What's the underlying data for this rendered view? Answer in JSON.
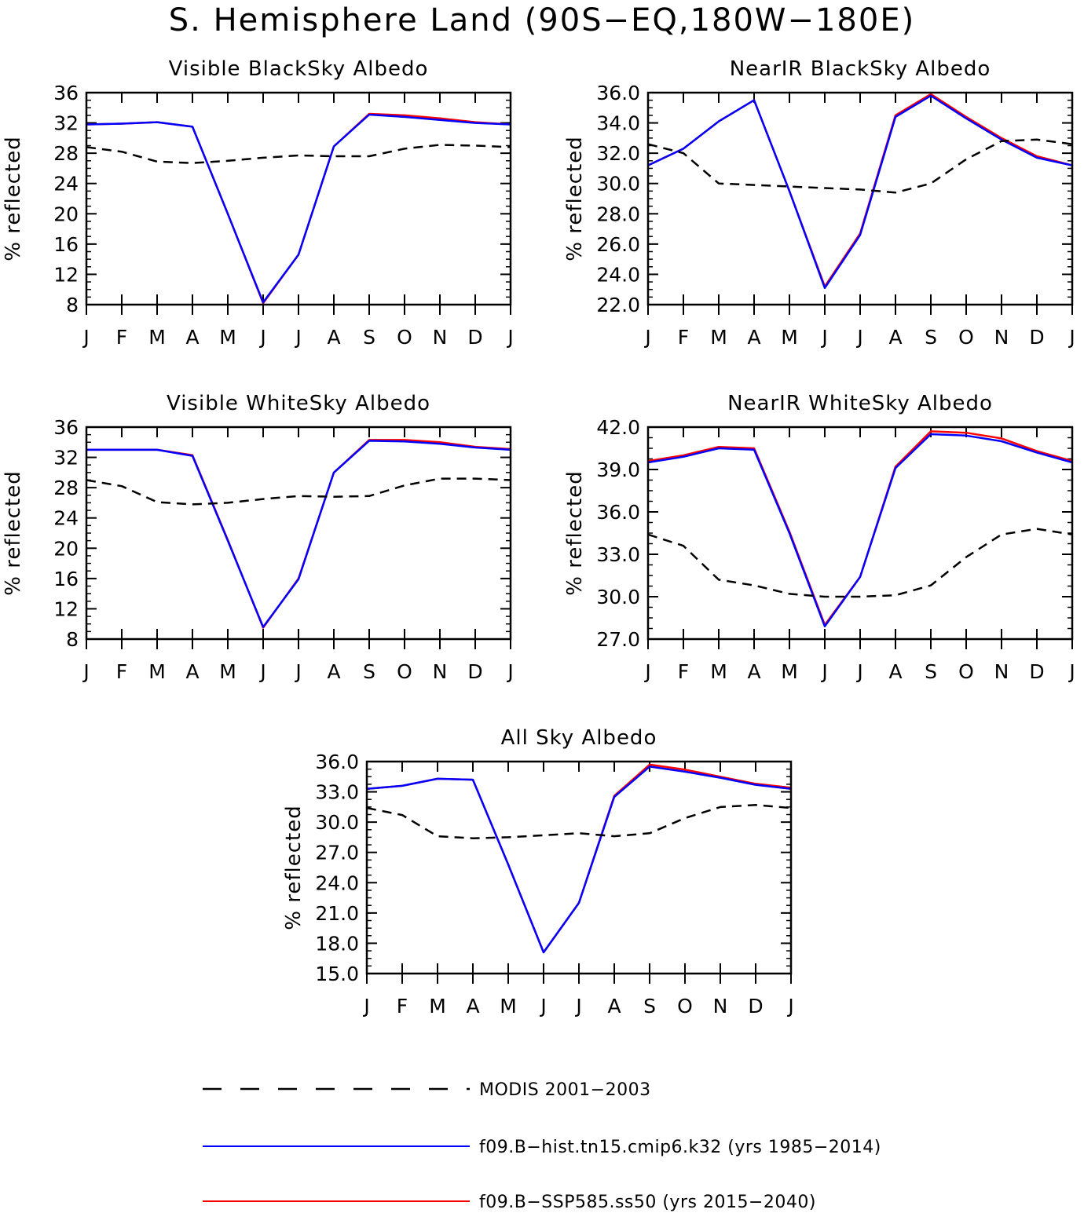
{
  "title": "S. Hemisphere Land (90S−EQ,180W−180E)",
  "colors": {
    "modis": "#000000",
    "hist": "#0000ff",
    "ssp": "#ff0000"
  },
  "legend": [
    {
      "key": "modis",
      "label": "MODIS 2001−2003",
      "style": "dashed"
    },
    {
      "key": "hist",
      "label": "f09.B−hist.tn15.cmip6.k32 (yrs 1985−2014)",
      "style": "solid"
    },
    {
      "key": "ssp",
      "label": "f09.B−SSP585.ss50 (yrs 2015−2040)",
      "style": "solid"
    }
  ],
  "chart_data": [
    {
      "type": "line",
      "title": "Visible BlackSky Albedo",
      "ylabel": "% reflected",
      "categories": [
        "J",
        "F",
        "M",
        "A",
        "M",
        "J",
        "J",
        "A",
        "S",
        "O",
        "N",
        "D",
        "J"
      ],
      "ylim": [
        8,
        36
      ],
      "yticks": [
        "8",
        "12",
        "16",
        "20",
        "24",
        "28",
        "32",
        "36"
      ],
      "series": [
        {
          "name": "MODIS 2001−2003",
          "key": "modis",
          "values": [
            28.8,
            28.2,
            26.9,
            26.7,
            27.0,
            27.4,
            27.7,
            27.6,
            27.6,
            28.6,
            29.1,
            29.0,
            28.8
          ]
        },
        {
          "name": "f09.B−hist.tn15.cmip6.k32 (yrs 1985−2014)",
          "key": "hist",
          "values": [
            31.8,
            31.9,
            32.1,
            31.5,
            20.0,
            8.3,
            14.6,
            28.9,
            33.1,
            32.8,
            32.4,
            32.0,
            31.8
          ]
        },
        {
          "name": "f09.B−SSP585.ss50 (yrs 2015−2040)",
          "key": "ssp",
          "values": [
            31.8,
            31.9,
            32.1,
            31.5,
            20.0,
            8.2,
            14.6,
            28.9,
            33.2,
            33.0,
            32.6,
            32.1,
            31.8
          ]
        }
      ]
    },
    {
      "type": "line",
      "title": "NearIR BlackSky Albedo",
      "ylabel": "% reflected",
      "categories": [
        "J",
        "F",
        "M",
        "A",
        "M",
        "J",
        "J",
        "A",
        "S",
        "O",
        "N",
        "D",
        "J"
      ],
      "ylim": [
        22,
        36
      ],
      "yticks": [
        "22.0",
        "24.0",
        "26.0",
        "28.0",
        "30.0",
        "32.0",
        "34.0",
        "36.0"
      ],
      "series": [
        {
          "name": "MODIS 2001−2003",
          "key": "modis",
          "values": [
            32.6,
            32.0,
            30.0,
            29.9,
            29.8,
            29.7,
            29.6,
            29.4,
            30.0,
            31.6,
            32.8,
            32.9,
            32.6
          ]
        },
        {
          "name": "f09.B−hist.tn15.cmip6.k32 (yrs 1985−2014)",
          "key": "hist",
          "values": [
            31.2,
            32.3,
            34.1,
            35.5,
            29.5,
            23.1,
            26.6,
            34.4,
            35.8,
            34.3,
            32.9,
            31.7,
            31.2
          ]
        },
        {
          "name": "f09.B−SSP585.ss50 (yrs 2015−2040)",
          "key": "ssp",
          "values": [
            31.2,
            32.3,
            34.1,
            35.5,
            29.5,
            23.2,
            26.7,
            34.5,
            35.9,
            34.4,
            33.0,
            31.8,
            31.2
          ]
        }
      ]
    },
    {
      "type": "line",
      "title": "Visible WhiteSky Albedo",
      "ylabel": "% reflected",
      "categories": [
        "J",
        "F",
        "M",
        "A",
        "M",
        "J",
        "J",
        "A",
        "S",
        "O",
        "N",
        "D",
        "J"
      ],
      "ylim": [
        8,
        36
      ],
      "yticks": [
        "8",
        "12",
        "16",
        "20",
        "24",
        "28",
        "32",
        "36"
      ],
      "series": [
        {
          "name": "MODIS 2001−2003",
          "key": "modis",
          "values": [
            29.0,
            28.2,
            26.1,
            25.8,
            26.0,
            26.5,
            26.9,
            26.8,
            26.9,
            28.3,
            29.2,
            29.2,
            29.0
          ]
        },
        {
          "name": "f09.B−hist.tn15.cmip6.k32 (yrs 1985−2014)",
          "key": "hist",
          "values": [
            33.0,
            33.0,
            33.0,
            32.2,
            21.0,
            9.6,
            15.9,
            30.0,
            34.2,
            34.1,
            33.8,
            33.3,
            33.0
          ]
        },
        {
          "name": "f09.B−SSP585.ss50 (yrs 2015−2040)",
          "key": "ssp",
          "values": [
            33.0,
            33.0,
            33.0,
            32.3,
            21.1,
            9.5,
            16.0,
            30.0,
            34.3,
            34.3,
            34.0,
            33.4,
            33.1
          ]
        }
      ]
    },
    {
      "type": "line",
      "title": "NearIR WhiteSky Albedo",
      "ylabel": "% reflected",
      "categories": [
        "J",
        "F",
        "M",
        "A",
        "M",
        "J",
        "J",
        "A",
        "S",
        "O",
        "N",
        "D",
        "J"
      ],
      "ylim": [
        27,
        42
      ],
      "yticks": [
        "27.0",
        "30.0",
        "33.0",
        "36.0",
        "39.0",
        "42.0"
      ],
      "series": [
        {
          "name": "MODIS 2001−2003",
          "key": "modis",
          "values": [
            34.4,
            33.6,
            31.2,
            30.8,
            30.2,
            30.0,
            30.0,
            30.1,
            30.8,
            32.8,
            34.4,
            34.8,
            34.4
          ]
        },
        {
          "name": "f09.B−hist.tn15.cmip6.k32 (yrs 1985−2014)",
          "key": "hist",
          "values": [
            39.5,
            39.9,
            40.5,
            40.4,
            34.5,
            27.9,
            31.4,
            39.1,
            41.5,
            41.4,
            41.0,
            40.2,
            39.5
          ]
        },
        {
          "name": "f09.B−SSP585.ss50 (yrs 2015−2040)",
          "key": "ssp",
          "values": [
            39.6,
            40.0,
            40.6,
            40.5,
            34.6,
            28.0,
            31.4,
            39.2,
            41.7,
            41.6,
            41.2,
            40.3,
            39.6
          ]
        }
      ]
    },
    {
      "type": "line",
      "title": "All Sky Albedo",
      "ylabel": "% reflected",
      "categories": [
        "J",
        "F",
        "M",
        "A",
        "M",
        "J",
        "J",
        "A",
        "S",
        "O",
        "N",
        "D",
        "J"
      ],
      "ylim": [
        15,
        36
      ],
      "yticks": [
        "15.0",
        "18.0",
        "21.0",
        "24.0",
        "27.0",
        "30.0",
        "33.0",
        "36.0"
      ],
      "series": [
        {
          "name": "MODIS 2001−2003",
          "key": "modis",
          "values": [
            31.4,
            30.7,
            28.6,
            28.4,
            28.5,
            28.7,
            28.9,
            28.6,
            28.9,
            30.4,
            31.5,
            31.7,
            31.4
          ]
        },
        {
          "name": "f09.B−hist.tn15.cmip6.k32 (yrs 1985−2014)",
          "key": "hist",
          "values": [
            33.3,
            33.6,
            34.3,
            34.2,
            25.8,
            17.1,
            22.0,
            32.5,
            35.5,
            35.0,
            34.4,
            33.7,
            33.3
          ]
        },
        {
          "name": "f09.B−SSP585.ss50 (yrs 2015−2040)",
          "key": "ssp",
          "values": [
            33.3,
            33.6,
            34.3,
            34.2,
            25.8,
            17.1,
            22.0,
            32.6,
            35.7,
            35.2,
            34.5,
            33.8,
            33.4
          ]
        }
      ]
    }
  ]
}
